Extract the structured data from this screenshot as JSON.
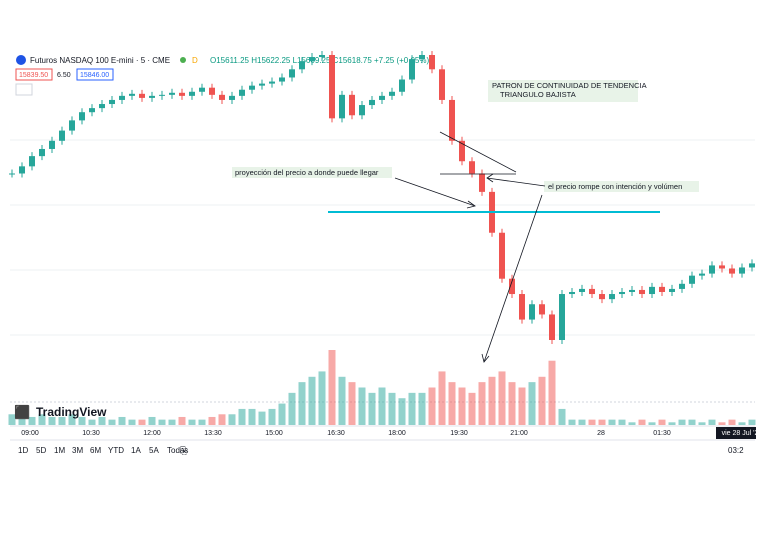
{
  "header": {
    "symbol": "Futuros NASDAQ 100 E-mini · 5 · CME",
    "badge": "D",
    "ohlc": "O15611.25 H15622.25 L15609.25 C15618.75 +7.25 (+0.05%)",
    "sell": "15839.50",
    "spread": "6.50",
    "buy": "15846.00"
  },
  "annotations": {
    "pattern_title": "PATRON DE CONTINUIDAD DE TENDENCIA",
    "pattern_name": "TRIANGULO BAJISTA",
    "projection": "proyección del precio a donde puede llegar",
    "breakout": "el precio rompe con intención y volúmen"
  },
  "logo": "TradingView",
  "chart_data": {
    "type": "candlestick",
    "up_color": "#26a69a",
    "down_color": "#ef5350",
    "values": [
      15778,
      15785,
      15795,
      15802,
      15810,
      15820,
      15830,
      15838,
      15842,
      15846,
      15850,
      15854,
      15856,
      15852,
      15854,
      15855,
      15857,
      15854,
      15858,
      15862,
      15855,
      15850,
      15854,
      15860,
      15864,
      15866,
      15868,
      15872,
      15880,
      15888,
      15892,
      15894,
      15832,
      15855,
      15835,
      15845,
      15850,
      15854,
      15858,
      15870,
      15890,
      15894,
      15880,
      15850,
      15810,
      15790,
      15778,
      15760,
      15720,
      15675,
      15660,
      15635,
      15650,
      15640,
      15615,
      15660,
      15662,
      15665,
      15660,
      15655,
      15660,
      15662,
      15664,
      15660,
      15667,
      15662,
      15665,
      15670,
      15678,
      15680,
      15688,
      15685,
      15680,
      15686,
      15690
    ],
    "volumes": [
      2,
      2,
      1.5,
      2,
      1.5,
      1.5,
      2,
      1.5,
      1,
      1.5,
      1,
      1.5,
      1,
      1,
      1.5,
      1,
      1,
      1.5,
      1,
      1,
      1.5,
      2,
      2,
      3,
      3,
      2.5,
      3,
      4,
      6,
      8,
      9,
      10,
      14,
      9,
      8,
      7,
      6,
      7,
      6,
      5,
      6,
      6,
      7,
      10,
      8,
      7,
      6,
      8,
      9,
      10,
      8,
      7,
      8,
      9,
      12,
      3,
      1,
      1,
      1,
      1,
      1,
      1,
      0.5,
      1,
      0.5,
      1,
      0.5,
      1,
      1,
      0.5,
      1,
      0.5,
      1,
      0.5,
      1
    ],
    "x_labels": [
      "09:00",
      "10:30",
      "12:00",
      "13:30",
      "15:00",
      "16:30",
      "18:00",
      "19:30",
      "21:00",
      "28",
      "01:30",
      "vie 28 Jul '2"
    ]
  },
  "toolbar": {
    "ranges": [
      "1D",
      "5D",
      "1M",
      "3M",
      "6M",
      "YTD",
      "1A",
      "5A",
      "Todas"
    ],
    "clock": "03:2"
  }
}
